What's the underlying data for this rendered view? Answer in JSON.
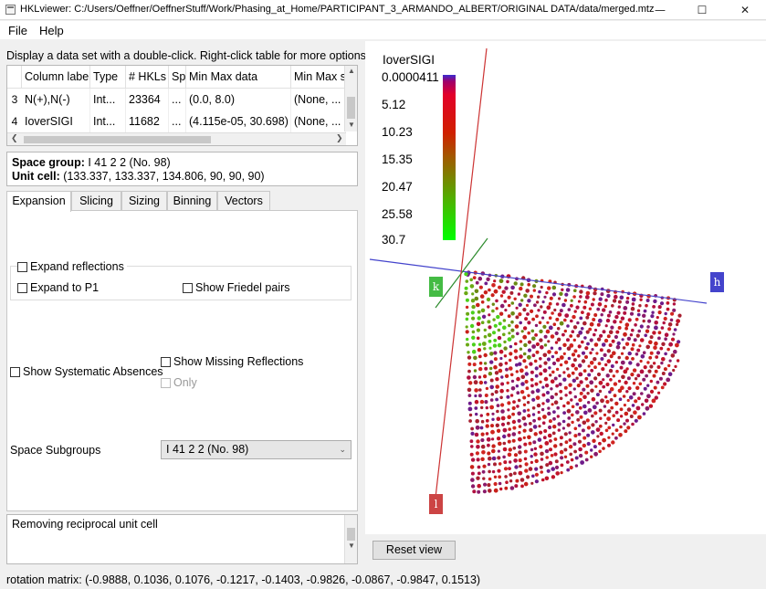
{
  "window": {
    "title": "HKLviewer: C:/Users/Oeffner/OeffnerStuff/Work/Phasing_at_Home/PARTICIPANT_3_ARMANDO_ALBERT/ORIGINAL DATA/data/merged.mtz",
    "minimize": "—",
    "maximize": "☐",
    "close": "✕"
  },
  "menu": {
    "file": "File",
    "help": "Help"
  },
  "instruction": "Display a data set with a double-click. Right-click table for more options.",
  "table": {
    "headers": [
      "Column label",
      "Type",
      "# HKLs",
      "Sp",
      "Min Max data",
      "Min Max si"
    ],
    "rows": [
      {
        "index": "3",
        "cells": [
          "N(+),N(-)",
          "Int...",
          "23364",
          "...",
          "(0.0, 8.0)",
          "(None, ..."
        ]
      },
      {
        "index": "4",
        "cells": [
          "IoverSIGI",
          "Int...",
          "11682",
          "...",
          "(4.115e-05, 30.698)",
          "(None, ..."
        ]
      }
    ]
  },
  "crystal": {
    "space_group_label": "Space group:",
    "space_group_value": "I 41 2 2 (No. 98)",
    "unit_cell_label": "Unit cell:",
    "unit_cell_value": "(133.337, 133.337, 134.806, 90, 90, 90)"
  },
  "tabs": [
    "Expansion",
    "Slicing",
    "Sizing",
    "Binning",
    "Vectors"
  ],
  "expansion": {
    "expand_reflections": "Expand reflections",
    "expand_p1": "Expand to P1",
    "show_friedel": "Show Friedel pairs",
    "show_sys_absences": "Show Systematic Absences",
    "show_missing": "Show Missing Reflections",
    "only": "Only",
    "space_subgroups_label": "Space Subgroups",
    "space_subgroups_value": "I 41 2 2 (No. 98)"
  },
  "log": {
    "text": "Removing reciprocal unit cell"
  },
  "reset_view": "Reset view",
  "status": "rotation matrix: (-0.9888, 0.1036, 0.1076, -0.1217, -0.1403, -0.9826, -0.0867, -0.9847, 0.1513)",
  "legend": {
    "title": "IoverSIGI",
    "ticks": [
      "0.0000411",
      "5.12",
      "10.23",
      "15.35",
      "20.47",
      "25.58",
      "30.7"
    ]
  },
  "axes": {
    "h": "h",
    "k": "k",
    "l": "l"
  },
  "colors": {
    "h_axis": "#4444cc",
    "k_axis": "#44bb44",
    "l_axis": "#cc4444"
  },
  "icons": {
    "app": "app-window-icon",
    "scroll_up": "▲",
    "scroll_down": "▼",
    "scroll_left": "❮",
    "scroll_right": "❯",
    "dropdown": "⌄"
  }
}
